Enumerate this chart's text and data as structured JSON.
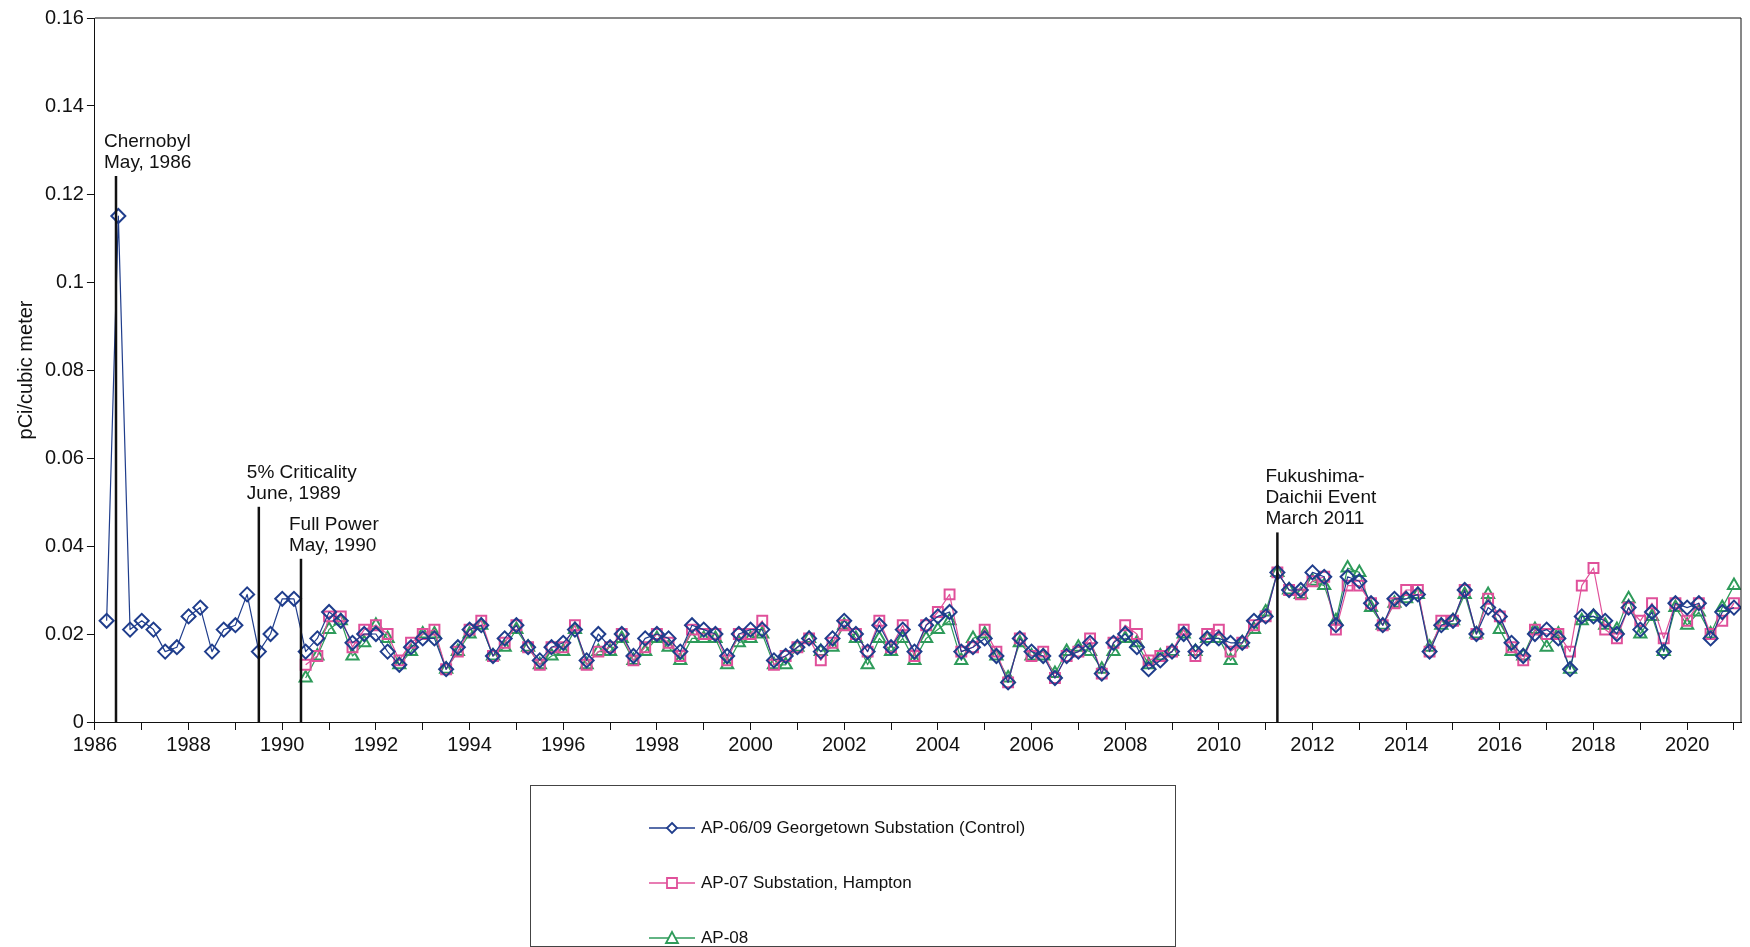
{
  "chart_data": {
    "type": "line",
    "ylabel": "pCi/cubic meter",
    "xlim": [
      1986,
      2021.15
    ],
    "xticks": [
      1986,
      {
        "value": 1987,
        "label": null
      },
      1988,
      {
        "value": 1989,
        "label": null
      },
      1990,
      {
        "value": 1991,
        "label": null
      },
      1992,
      {
        "value": 1993,
        "label": null
      },
      1994,
      {
        "value": 1995,
        "label": null
      },
      1996,
      {
        "value": 1997,
        "label": null
      },
      1998,
      {
        "value": 1999,
        "label": null
      },
      2000,
      {
        "value": 2001,
        "label": null
      },
      2002,
      {
        "value": 2003,
        "label": null
      },
      2004,
      {
        "value": 2005,
        "label": null
      },
      2006,
      {
        "value": 2007,
        "label": null
      },
      2008,
      {
        "value": 2009,
        "label": null
      },
      2010,
      {
        "value": 2011,
        "label": null
      },
      2012,
      {
        "value": 2013,
        "label": null
      },
      2014,
      {
        "value": 2015,
        "label": null
      },
      2016,
      {
        "value": 2017,
        "label": null
      },
      2018,
      {
        "value": 2019,
        "label": null
      },
      2020,
      {
        "value": 2021,
        "label": null
      }
    ],
    "ylim": [
      0,
      0.16
    ],
    "yticks": [
      0,
      0.02,
      0.04,
      0.06,
      0.08,
      0.1,
      0.12,
      0.14,
      0.16
    ],
    "grid": false,
    "legend": "bottom",
    "line_style": "solid",
    "x": [
      1990.5,
      1990.75,
      1991,
      1991.25,
      1991.5,
      1991.75,
      1992,
      1992.25,
      1992.5,
      1992.75,
      1993,
      1993.25,
      1993.5,
      1993.75,
      1994,
      1994.25,
      1994.5,
      1994.75,
      1995,
      1995.25,
      1995.5,
      1995.75,
      1996,
      1996.25,
      1996.5,
      1996.75,
      1997,
      1997.25,
      1997.5,
      1997.75,
      1998,
      1998.25,
      1998.5,
      1998.75,
      1999,
      1999.25,
      1999.5,
      1999.75,
      2000,
      2000.25,
      2000.5,
      2000.75,
      2001,
      2001.25,
      2001.5,
      2001.75,
      2002,
      2002.25,
      2002.5,
      2002.75,
      2003,
      2003.25,
      2003.5,
      2003.75,
      2004,
      2004.25,
      2004.5,
      2004.75,
      2005,
      2005.25,
      2005.5,
      2005.75,
      2006,
      2006.25,
      2006.5,
      2006.75,
      2007,
      2007.25,
      2007.5,
      2007.75,
      2008,
      2008.25,
      2008.5,
      2008.75,
      2009,
      2009.25,
      2009.5,
      2009.75,
      2010,
      2010.25,
      2010.5,
      2010.75,
      2011,
      2011.25,
      2011.5,
      2011.75,
      2012,
      2012.25,
      2012.5,
      2012.75,
      2013,
      2013.25,
      2013.5,
      2013.75,
      2014,
      2014.25,
      2014.5,
      2014.75,
      2015,
      2015.25,
      2015.5,
      2015.75,
      2016,
      2016.25,
      2016.5,
      2016.75,
      2017,
      2017.25,
      2017.5,
      2017.75,
      2018,
      2018.25,
      2018.5,
      2018.75,
      2019,
      2019.25,
      2019.5,
      2019.75,
      2020,
      2020.25,
      2020.5,
      2020.75,
      2021
    ],
    "series": [
      {
        "name": "AP-06/09 Georgetown Substation (Control)",
        "color": "#1f3d8c",
        "marker": "diamond",
        "x": [
          1986.25,
          1986.5,
          1986.75,
          1987,
          1987.25,
          1987.5,
          1987.75,
          1988,
          1988.25,
          1988.5,
          1988.75,
          1989,
          1989.25,
          1989.5,
          1989.75,
          1990,
          1990.25,
          1990.5,
          1990.75,
          1991,
          1991.25,
          1991.5,
          1991.75,
          1992,
          1992.25,
          1992.5,
          1992.75,
          1993,
          1993.25,
          1993.5,
          1993.75,
          1994,
          1994.25,
          1994.5,
          1994.75,
          1995,
          1995.25,
          1995.5,
          1995.75,
          1996,
          1996.25,
          1996.5,
          1996.75,
          1997,
          1997.25,
          1997.5,
          1997.75,
          1998,
          1998.25,
          1998.5,
          1998.75,
          1999,
          1999.25,
          1999.5,
          1999.75,
          2000,
          2000.25,
          2000.5,
          2000.75,
          2001,
          2001.25,
          2001.5,
          2001.75,
          2002,
          2002.25,
          2002.5,
          2002.75,
          2003,
          2003.25,
          2003.5,
          2003.75,
          2004,
          2004.25,
          2004.5,
          2004.75,
          2005,
          2005.25,
          2005.5,
          2005.75,
          2006,
          2006.25,
          2006.5,
          2006.75,
          2007,
          2007.25,
          2007.5,
          2007.75,
          2008,
          2008.25,
          2008.5,
          2008.75,
          2009,
          2009.25,
          2009.5,
          2009.75,
          2010,
          2010.25,
          2010.5,
          2010.75,
          2011,
          2011.25,
          2011.5,
          2011.75,
          2012,
          2012.25,
          2012.5,
          2012.75,
          2013,
          2013.25,
          2013.5,
          2013.75,
          2014,
          2014.25,
          2014.5,
          2014.75,
          2015,
          2015.25,
          2015.5,
          2015.75,
          2016,
          2016.25,
          2016.5,
          2016.75,
          2017,
          2017.25,
          2017.5,
          2017.75,
          2018,
          2018.25,
          2018.5,
          2018.75,
          2019,
          2019.25,
          2019.5,
          2019.75,
          2020,
          2020.25,
          2020.5,
          2020.75,
          2021
        ],
        "values": [
          0.023,
          0.115,
          0.021,
          0.023,
          0.021,
          0.016,
          0.017,
          0.024,
          0.026,
          0.016,
          0.021,
          0.022,
          0.029,
          0.016,
          0.02,
          0.028,
          0.028,
          0.016,
          0.019,
          0.025,
          0.023,
          0.018,
          0.02,
          0.02,
          0.016,
          0.013,
          0.017,
          0.019,
          0.019,
          0.012,
          0.017,
          0.021,
          0.022,
          0.015,
          0.019,
          0.022,
          0.017,
          0.014,
          0.017,
          0.018,
          0.021,
          0.014,
          0.02,
          0.017,
          0.02,
          0.015,
          0.019,
          0.02,
          0.019,
          0.016,
          0.022,
          0.021,
          0.02,
          0.015,
          0.02,
          0.021,
          0.021,
          0.014,
          0.015,
          0.017,
          0.019,
          0.016,
          0.019,
          0.023,
          0.02,
          0.016,
          0.022,
          0.017,
          0.021,
          0.016,
          0.022,
          0.024,
          0.025,
          0.016,
          0.017,
          0.019,
          0.015,
          0.009,
          0.019,
          0.016,
          0.015,
          0.01,
          0.015,
          0.016,
          0.018,
          0.011,
          0.018,
          0.02,
          0.017,
          0.012,
          0.014,
          0.016,
          0.02,
          0.016,
          0.019,
          0.019,
          0.018,
          0.018,
          0.023,
          0.024,
          0.034,
          0.03,
          0.03,
          0.034,
          0.033,
          0.022,
          0.033,
          0.032,
          0.027,
          0.022,
          0.028,
          0.028,
          0.029,
          0.016,
          0.022,
          0.023,
          0.03,
          0.02,
          0.026,
          0.024,
          0.018,
          0.015,
          0.02,
          0.021,
          0.019,
          0.012,
          0.024,
          0.024,
          0.023,
          0.02,
          0.026,
          0.021,
          0.025,
          0.016,
          0.027,
          0.026,
          0.027,
          0.019,
          0.025,
          0.026
        ]
      },
      {
        "name": "AP-07 Substation, Hampton",
        "color": "#e0509a",
        "marker": "square",
        "values": [
          0.013,
          0.015,
          0.024,
          0.024,
          0.017,
          0.021,
          0.022,
          0.02,
          0.014,
          0.018,
          0.02,
          0.021,
          0.012,
          0.016,
          0.021,
          0.023,
          0.015,
          0.018,
          0.022,
          0.017,
          0.013,
          0.017,
          0.017,
          0.022,
          0.013,
          0.016,
          0.017,
          0.02,
          0.014,
          0.017,
          0.02,
          0.018,
          0.015,
          0.021,
          0.02,
          0.02,
          0.014,
          0.02,
          0.02,
          0.023,
          0.013,
          0.015,
          0.017,
          0.019,
          0.014,
          0.018,
          0.022,
          0.02,
          0.016,
          0.023,
          0.017,
          0.022,
          0.015,
          0.022,
          0.025,
          0.029,
          0.016,
          0.017,
          0.021,
          0.016,
          0.009,
          0.019,
          0.015,
          0.016,
          0.01,
          0.015,
          0.016,
          0.019,
          0.011,
          0.018,
          0.022,
          0.02,
          0.014,
          0.015,
          0.016,
          0.021,
          0.015,
          0.02,
          0.021,
          0.016,
          0.018,
          0.022,
          0.024,
          0.034,
          0.03,
          0.029,
          0.032,
          0.033,
          0.021,
          0.031,
          0.031,
          0.027,
          0.022,
          0.027,
          0.03,
          0.03,
          0.016,
          0.023,
          0.023,
          0.03,
          0.02,
          0.028,
          0.024,
          0.017,
          0.014,
          0.021,
          0.02,
          0.02,
          0.016,
          0.031,
          0.035,
          0.021,
          0.019,
          0.026,
          0.023,
          0.027,
          0.019,
          0.027,
          0.023,
          0.027,
          0.02,
          0.023,
          0.027
        ]
      },
      {
        "name": "AP-08",
        "color": "#2e9b5a",
        "marker": "triangle",
        "values": [
          0.01,
          0.015,
          0.021,
          0.023,
          0.015,
          0.018,
          0.022,
          0.019,
          0.013,
          0.016,
          0.02,
          0.02,
          0.012,
          0.016,
          0.02,
          0.022,
          0.015,
          0.017,
          0.021,
          0.017,
          0.013,
          0.015,
          0.016,
          0.021,
          0.013,
          0.016,
          0.016,
          0.019,
          0.014,
          0.016,
          0.019,
          0.017,
          0.014,
          0.019,
          0.019,
          0.019,
          0.013,
          0.018,
          0.019,
          0.02,
          0.013,
          0.013,
          0.017,
          0.019,
          0.016,
          0.017,
          0.022,
          0.019,
          0.013,
          0.019,
          0.016,
          0.019,
          0.014,
          0.019,
          0.021,
          0.023,
          0.014,
          0.019,
          0.02,
          0.015,
          0.01,
          0.018,
          0.015,
          0.015,
          0.011,
          0.016,
          0.017,
          0.016,
          0.012,
          0.016,
          0.019,
          0.018,
          0.013,
          0.015,
          0.016,
          0.02,
          0.016,
          0.019,
          0.019,
          0.014,
          0.018,
          0.021,
          0.025,
          0.034,
          0.03,
          0.029,
          0.032,
          0.031,
          0.023,
          0.035,
          0.034,
          0.026,
          0.022,
          0.027,
          0.028,
          0.029,
          0.017,
          0.022,
          0.023,
          0.029,
          0.02,
          0.029,
          0.021,
          0.016,
          0.015,
          0.021,
          0.017,
          0.02,
          0.012,
          0.023,
          0.024,
          0.022,
          0.021,
          0.028,
          0.02,
          0.024,
          0.016,
          0.026,
          0.022,
          0.025,
          0.02,
          0.026,
          0.031
        ]
      }
    ],
    "ref_lines": [
      {
        "axis": "x",
        "value": 1986.45,
        "label": "Chernobyl\nMay, 1986"
      },
      {
        "axis": "x",
        "value": 1989.5,
        "label": "5% Criticality\nJune, 1989"
      },
      {
        "axis": "x",
        "value": 1990.4,
        "label": "Full Power\nMay, 1990"
      },
      {
        "axis": "x",
        "value": 2011.25,
        "label": "Fukushima-\nDaichii Event\nMarch 2011"
      }
    ]
  }
}
